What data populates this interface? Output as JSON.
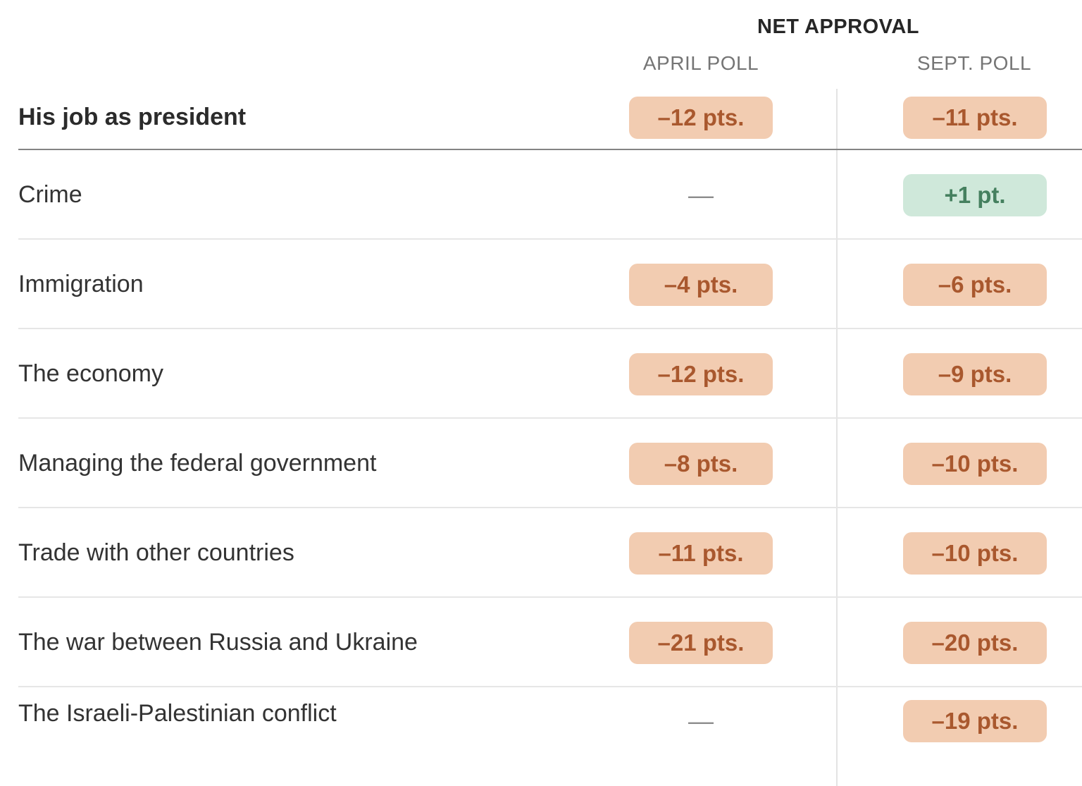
{
  "header": {
    "title": "NET APPROVAL",
    "columns": [
      "APRIL POLL",
      "SEPT. POLL"
    ]
  },
  "rows": [
    {
      "label": "His job as president",
      "bold": true,
      "april": {
        "text": "–12 pts.",
        "sentiment": "negative"
      },
      "sept": {
        "text": "–11 pts.",
        "sentiment": "negative"
      }
    },
    {
      "label": "Crime",
      "bold": false,
      "april": {
        "text": "—",
        "sentiment": "none"
      },
      "sept": {
        "text": "+1 pt.",
        "sentiment": "positive"
      }
    },
    {
      "label": "Immigration",
      "bold": false,
      "april": {
        "text": "–4 pts.",
        "sentiment": "negative"
      },
      "sept": {
        "text": "–6 pts.",
        "sentiment": "negative"
      }
    },
    {
      "label": "The economy",
      "bold": false,
      "april": {
        "text": "–12 pts.",
        "sentiment": "negative"
      },
      "sept": {
        "text": "–9 pts.",
        "sentiment": "negative"
      }
    },
    {
      "label": "Managing the federal government",
      "bold": false,
      "april": {
        "text": "–8 pts.",
        "sentiment": "negative"
      },
      "sept": {
        "text": "–10 pts.",
        "sentiment": "negative"
      }
    },
    {
      "label": "Trade with other countries",
      "bold": false,
      "april": {
        "text": "–11 pts.",
        "sentiment": "negative"
      },
      "sept": {
        "text": "–10 pts.",
        "sentiment": "negative"
      }
    },
    {
      "label": "The war between Russia and Ukraine",
      "bold": false,
      "april": {
        "text": "–21 pts.",
        "sentiment": "negative"
      },
      "sept": {
        "text": "–20 pts.",
        "sentiment": "negative"
      }
    },
    {
      "label": "The Israeli-Palestinian conflict",
      "bold": false,
      "april": {
        "text": "—",
        "sentiment": "none"
      },
      "sept": {
        "text": "–19 pts.",
        "sentiment": "negative"
      }
    }
  ],
  "colors": {
    "badge_negative_bg": "#f2ccb1",
    "badge_negative_text": "#a9582e",
    "badge_positive_bg": "#cfe8da",
    "badge_positive_text": "#45805f",
    "divider": "#e3e3e3",
    "rule_dark": "#848484",
    "rule_light": "#e6e6e6",
    "dash": "#8c8c8c"
  },
  "chart_data": {
    "type": "table",
    "title": "NET APPROVAL",
    "columns": [
      "APRIL POLL",
      "SEPT. POLL"
    ],
    "unit": "pts",
    "rows": [
      {
        "category": "His job as president",
        "april": -12,
        "sept": -11
      },
      {
        "category": "Crime",
        "april": null,
        "sept": 1
      },
      {
        "category": "Immigration",
        "april": -4,
        "sept": -6
      },
      {
        "category": "The economy",
        "april": -12,
        "sept": -9
      },
      {
        "category": "Managing the federal government",
        "april": -8,
        "sept": -10
      },
      {
        "category": "Trade with other countries",
        "april": -11,
        "sept": -10
      },
      {
        "category": "The war between Russia and Ukraine",
        "april": -21,
        "sept": -20
      },
      {
        "category": "The Israeli-Palestinian conflict",
        "april": null,
        "sept": -19
      }
    ]
  }
}
